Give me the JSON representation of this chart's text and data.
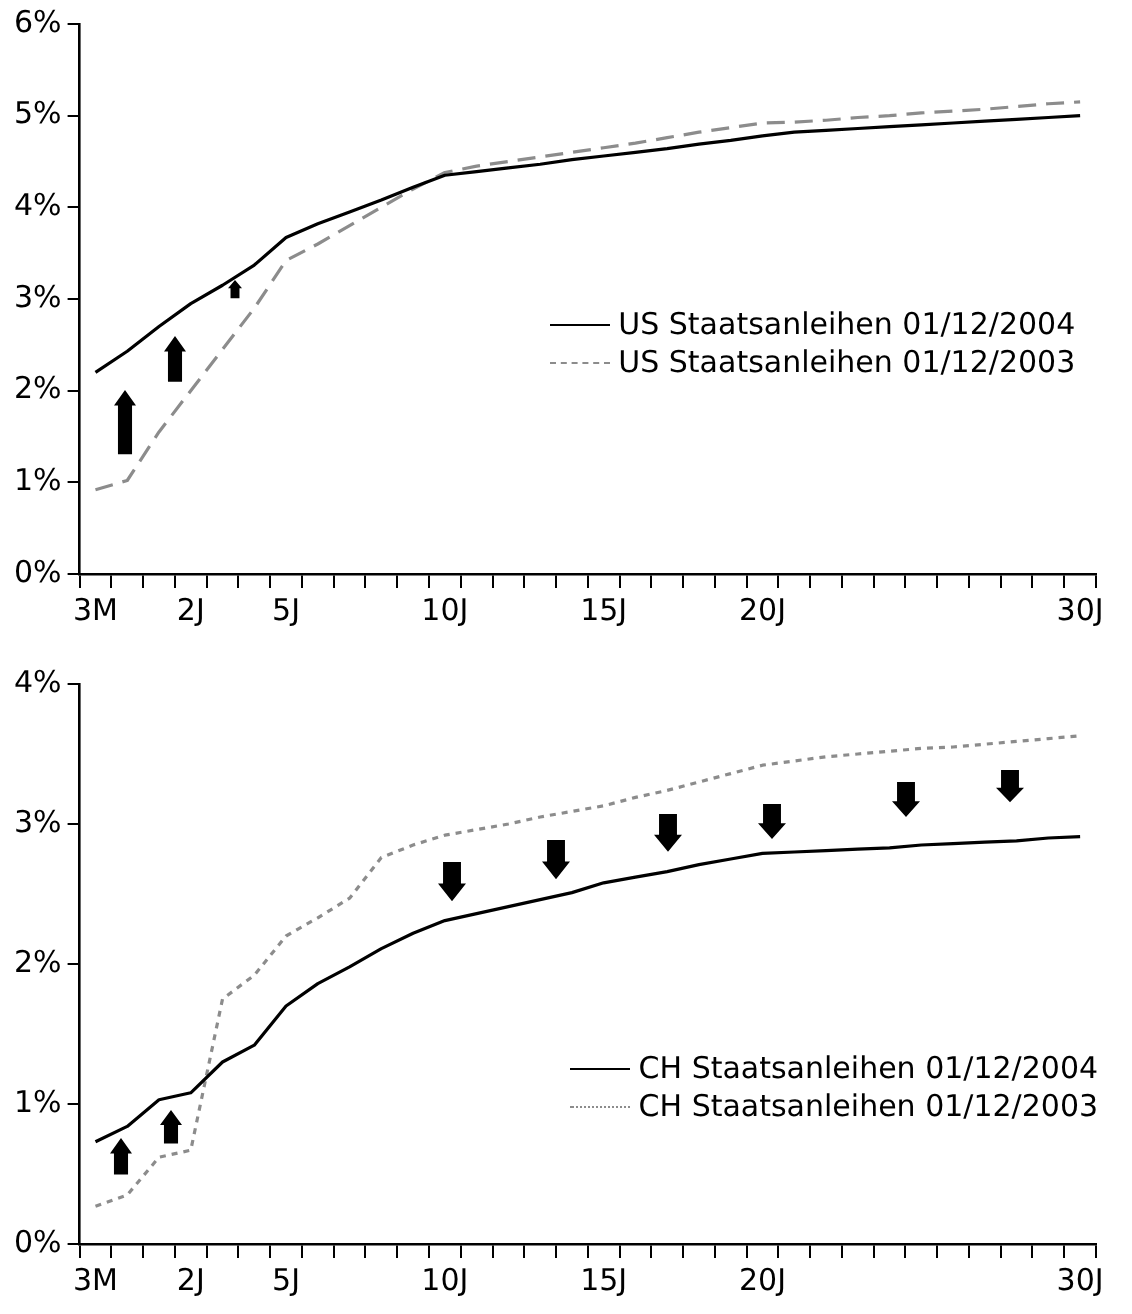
{
  "chart_data": [
    {
      "type": "line",
      "categories": [
        "3M",
        null,
        null,
        "2J",
        null,
        null,
        "5J",
        null,
        null,
        null,
        null,
        "10J",
        null,
        null,
        null,
        null,
        "15J",
        null,
        null,
        null,
        null,
        "20J",
        null,
        null,
        null,
        null,
        null,
        null,
        null,
        null,
        null,
        "30J"
      ],
      "series": [
        {
          "name": "US Staatsanleihen 01/12/2004",
          "color": "#000000",
          "line_style": "solid",
          "values": [
            2.2,
            2.43,
            2.7,
            2.95,
            3.15,
            3.37,
            3.67,
            3.82,
            3.95,
            4.08,
            4.22,
            4.35,
            4.39,
            4.43,
            4.47,
            4.52,
            4.56,
            4.6,
            4.64,
            4.69,
            4.73,
            4.78,
            4.82,
            4.84,
            4.86,
            4.88,
            4.9,
            4.92,
            4.94,
            4.96,
            4.98,
            5.0
          ]
        },
        {
          "name": "US Staatsanleihen 01/12/2003",
          "color": "#8c8c8c",
          "line_style": "dashed",
          "values": [
            0.92,
            1.02,
            1.55,
            2.0,
            2.45,
            2.9,
            3.42,
            3.6,
            3.8,
            4.0,
            4.2,
            4.38,
            4.45,
            4.5,
            4.55,
            4.6,
            4.65,
            4.7,
            4.76,
            4.82,
            4.87,
            4.92,
            4.93,
            4.95,
            4.98,
            5.0,
            5.03,
            5.05,
            5.07,
            5.1,
            5.13,
            5.15
          ]
        }
      ],
      "ylim": [
        0,
        6
      ],
      "yticks": [
        {
          "value": 0,
          "label": "0%"
        },
        {
          "value": 1,
          "label": "1%"
        },
        {
          "value": 2,
          "label": "2%"
        },
        {
          "value": 3,
          "label": "3%"
        },
        {
          "value": 4,
          "label": "4%"
        },
        {
          "value": 5,
          "label": "5%"
        },
        {
          "value": 6,
          "label": "6%"
        }
      ],
      "grid": false,
      "legend": "right",
      "marker": "none"
    },
    {
      "type": "line",
      "categories": [
        "3M",
        null,
        null,
        "2J",
        null,
        null,
        "5J",
        null,
        null,
        null,
        null,
        "10J",
        null,
        null,
        null,
        null,
        "15J",
        null,
        null,
        null,
        null,
        "20J",
        null,
        null,
        null,
        null,
        null,
        null,
        null,
        null,
        null,
        "30J"
      ],
      "series": [
        {
          "name": "CH Staatsanleihen 01/12/2004",
          "color": "#000000",
          "line_style": "solid",
          "values": [
            0.73,
            0.84,
            1.03,
            1.08,
            1.3,
            1.42,
            1.7,
            1.86,
            1.98,
            2.11,
            2.22,
            2.31,
            2.36,
            2.41,
            2.46,
            2.51,
            2.58,
            2.62,
            2.66,
            2.71,
            2.75,
            2.79,
            2.8,
            2.81,
            2.82,
            2.83,
            2.85,
            2.86,
            2.87,
            2.88,
            2.9,
            2.91
          ]
        },
        {
          "name": "CH Staatsanleihen 01/12/2003",
          "color": "#8c8c8c",
          "line_style": "dotted",
          "values": [
            0.27,
            0.35,
            0.62,
            0.67,
            1.75,
            1.92,
            2.2,
            2.33,
            2.47,
            2.76,
            2.85,
            2.92,
            2.96,
            3.0,
            3.05,
            3.09,
            3.13,
            3.19,
            3.24,
            3.3,
            3.36,
            3.42,
            3.45,
            3.48,
            3.5,
            3.52,
            3.54,
            3.55,
            3.57,
            3.59,
            3.61,
            3.63
          ]
        }
      ],
      "ylim": [
        0,
        4
      ],
      "yticks": [
        {
          "value": 0,
          "label": "0%"
        },
        {
          "value": 1,
          "label": "1%"
        },
        {
          "value": 2,
          "label": "2%"
        },
        {
          "value": 3,
          "label": "3%"
        },
        {
          "value": 4,
          "label": "4%"
        }
      ],
      "grid": false,
      "legend": "right",
      "marker": "none"
    }
  ]
}
